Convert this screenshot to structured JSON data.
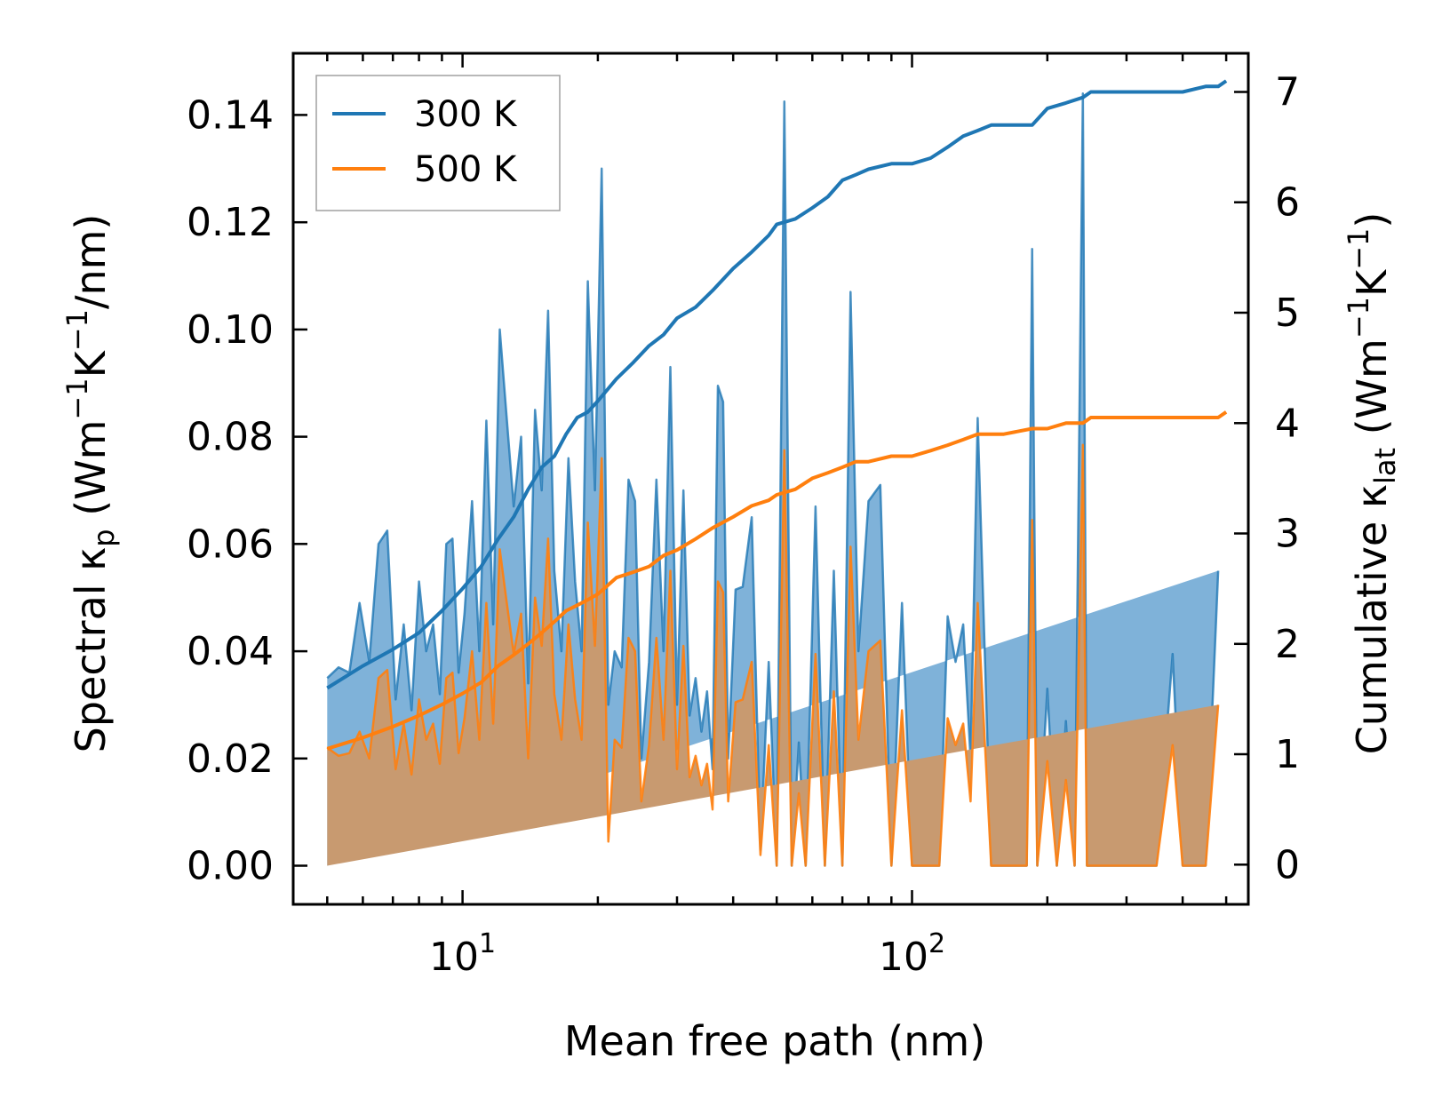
{
  "chart_data": {
    "type": "line",
    "x_scale": "log",
    "xlabel": "Mean free path (nm)",
    "ylabel_left_parts": {
      "pre": "Spectral κ",
      "sub": "p",
      "mid": " (Wm",
      "sup1": "−1",
      "k": "K",
      "sup2": "−1",
      "post": "/nm)"
    },
    "ylabel_right_parts": {
      "pre": "Cumulative κ",
      "sub": "lat",
      "mid": " (Wm",
      "sup1": "−1",
      "k": "K",
      "sup2": "−1",
      "post": ")"
    },
    "xlim": [
      4.2,
      560
    ],
    "ylim_left": [
      -0.0072,
      0.1515
    ],
    "ylim_right": [
      -0.36,
      7.35
    ],
    "x_ticks": [
      {
        "value": 10,
        "base": "10",
        "exp": "1"
      },
      {
        "value": 100,
        "base": "10",
        "exp": "2"
      }
    ],
    "y_ticks_left": [
      "0.00",
      "0.02",
      "0.04",
      "0.06",
      "0.08",
      "0.10",
      "0.12",
      "0.14"
    ],
    "y_ticks_left_values": [
      0,
      0.02,
      0.04,
      0.06,
      0.08,
      0.1,
      0.12,
      0.14
    ],
    "y_ticks_right": [
      "0",
      "1",
      "2",
      "3",
      "4",
      "5",
      "6",
      "7"
    ],
    "y_ticks_right_values": [
      0,
      1,
      2,
      3,
      4,
      5,
      6,
      7
    ],
    "legend": {
      "position": "top-left",
      "entries": [
        "300 K",
        "500 K"
      ]
    },
    "colors": {
      "t300": "#1f77b4",
      "t500": "#ff7f0e",
      "fill300": "#7fb2d9",
      "fill500": "#c89a70"
    },
    "spectral": {
      "x": [
        5.0,
        5.3,
        5.6,
        5.9,
        6.2,
        6.5,
        6.8,
        7.1,
        7.4,
        7.7,
        8.0,
        8.3,
        8.6,
        8.9,
        9.2,
        9.5,
        9.8,
        10.1,
        10.5,
        10.9,
        11.3,
        11.7,
        12.1,
        12.5,
        13.0,
        13.5,
        14.0,
        14.5,
        15.0,
        15.5,
        16.0,
        16.6,
        17.2,
        17.8,
        18.4,
        19.0,
        19.7,
        20.4,
        21.1,
        21.8,
        22.6,
        23.4,
        24.2,
        25.0,
        26.0,
        27.0,
        28.0,
        29.0,
        30.0,
        31.0,
        32.0,
        33.0,
        34.0,
        35.0,
        36.0,
        37.0,
        38.0,
        39.0,
        40.5,
        42.0,
        44.0,
        46.0,
        48.0,
        50.0,
        52.0,
        54.0,
        56.0,
        58.0,
        61.0,
        64.0,
        67.0,
        70.0,
        73.0,
        76.0,
        80.0,
        85.0,
        90.0,
        95.0,
        100.0,
        110.0,
        115.0,
        120.0,
        125.0,
        130.0,
        135.0,
        140.0,
        150.0,
        160.0,
        170.0,
        180.0,
        185.0,
        190.0,
        200.0,
        210.0,
        220.0,
        230.0,
        240.0,
        245.0,
        250.0,
        260.0,
        300.0,
        350.0,
        380.0,
        400.0,
        450.0,
        480.0,
        500.0
      ],
      "t300": [
        0.035,
        0.037,
        0.036,
        0.049,
        0.038,
        0.06,
        0.0625,
        0.031,
        0.045,
        0.029,
        0.053,
        0.04,
        0.045,
        0.032,
        0.06,
        0.061,
        0.036,
        0.047,
        0.068,
        0.04,
        0.083,
        0.045,
        0.1,
        0.085,
        0.067,
        0.08,
        0.034,
        0.085,
        0.07,
        0.1035,
        0.055,
        0.04,
        0.076,
        0.053,
        0.04,
        0.109,
        0.07,
        0.13,
        0.03,
        0.04,
        0.037,
        0.072,
        0.068,
        0.02,
        0.038,
        0.072,
        0.04,
        0.093,
        0.03,
        0.07,
        0.028,
        0.035,
        0.025,
        0.0325,
        0.018,
        0.0895,
        0.0865,
        0.02,
        0.0515,
        0.052,
        0.065,
        0.003,
        0.038,
        0.0,
        0.1425,
        0.0,
        0.023,
        0.0,
        0.067,
        0.0,
        0.055,
        0.0,
        0.107,
        0.04,
        0.068,
        0.071,
        0.0,
        0.049,
        0.0,
        0.0,
        0.0,
        0.0465,
        0.038,
        0.045,
        0.02,
        0.0835,
        0.0,
        0.0,
        0.0,
        0.0,
        0.115,
        0.0,
        0.033,
        0.0,
        0.027,
        0.0,
        0.144,
        0.0,
        0.0,
        0.0,
        0.0,
        0.0,
        0.0395,
        0.0,
        0.0,
        0.055
      ],
      "t500": [
        0.022,
        0.0205,
        0.021,
        0.025,
        0.02,
        0.035,
        0.0365,
        0.018,
        0.0265,
        0.017,
        0.031,
        0.0235,
        0.0265,
        0.019,
        0.035,
        0.036,
        0.021,
        0.0275,
        0.04,
        0.0235,
        0.049,
        0.0265,
        0.059,
        0.05,
        0.0395,
        0.047,
        0.02,
        0.05,
        0.041,
        0.061,
        0.032,
        0.0235,
        0.045,
        0.031,
        0.0235,
        0.064,
        0.041,
        0.076,
        0.0045,
        0.0235,
        0.022,
        0.0425,
        0.04,
        0.012,
        0.0225,
        0.0425,
        0.0235,
        0.055,
        0.018,
        0.041,
        0.0165,
        0.0205,
        0.015,
        0.019,
        0.0105,
        0.053,
        0.051,
        0.012,
        0.0305,
        0.031,
        0.038,
        0.002,
        0.0225,
        0.0,
        0.0775,
        0.0,
        0.0135,
        0.0,
        0.0395,
        0.0,
        0.0325,
        0.0,
        0.0595,
        0.0235,
        0.04,
        0.042,
        0.0,
        0.029,
        0.0,
        0.0,
        0.0,
        0.0275,
        0.0225,
        0.0265,
        0.012,
        0.049,
        0.0,
        0.0,
        0.0,
        0.0,
        0.0645,
        0.0,
        0.0195,
        0.0,
        0.016,
        0.0,
        0.0785,
        0.0,
        0.0,
        0.0,
        0.0,
        0.0,
        0.0225,
        0.0,
        0.0,
        0.03
      ]
    },
    "cumulative": {
      "x": [
        5.0,
        6.0,
        7.0,
        8.0,
        9.0,
        10.0,
        11.0,
        12.0,
        13.0,
        14.0,
        15.0,
        16.0,
        17.0,
        18.0,
        19.0,
        20.0,
        22.0,
        24.0,
        26.0,
        28.0,
        30.0,
        33.0,
        36.0,
        40.0,
        44.0,
        48.0,
        50.0,
        55.0,
        60.0,
        65.0,
        70.0,
        75.0,
        80.0,
        90.0,
        100.0,
        110.0,
        120.0,
        130.0,
        140.0,
        150.0,
        160.0,
        185.0,
        200.0,
        220.0,
        240.0,
        250.0,
        300.0,
        400.0,
        450.0,
        480.0,
        500.0
      ],
      "t300": [
        1.6,
        1.8,
        1.95,
        2.1,
        2.3,
        2.5,
        2.7,
        2.95,
        3.15,
        3.4,
        3.6,
        3.7,
        3.9,
        4.05,
        4.1,
        4.2,
        4.4,
        4.55,
        4.7,
        4.8,
        4.95,
        5.05,
        5.2,
        5.4,
        5.55,
        5.7,
        5.8,
        5.85,
        5.95,
        6.05,
        6.2,
        6.25,
        6.3,
        6.35,
        6.35,
        6.4,
        6.5,
        6.6,
        6.65,
        6.7,
        6.7,
        6.7,
        6.85,
        6.9,
        6.95,
        7.0,
        7.0,
        7.0,
        7.05,
        7.05,
        7.1
      ],
      "t500": [
        1.05,
        1.15,
        1.25,
        1.35,
        1.45,
        1.55,
        1.65,
        1.8,
        1.9,
        2.0,
        2.1,
        2.2,
        2.3,
        2.35,
        2.4,
        2.45,
        2.6,
        2.65,
        2.7,
        2.8,
        2.85,
        2.95,
        3.05,
        3.15,
        3.25,
        3.3,
        3.35,
        3.4,
        3.5,
        3.55,
        3.6,
        3.65,
        3.65,
        3.7,
        3.7,
        3.75,
        3.8,
        3.85,
        3.9,
        3.9,
        3.9,
        3.95,
        3.95,
        4.0,
        4.0,
        4.05,
        4.05,
        4.05,
        4.05,
        4.05,
        4.1
      ]
    }
  }
}
